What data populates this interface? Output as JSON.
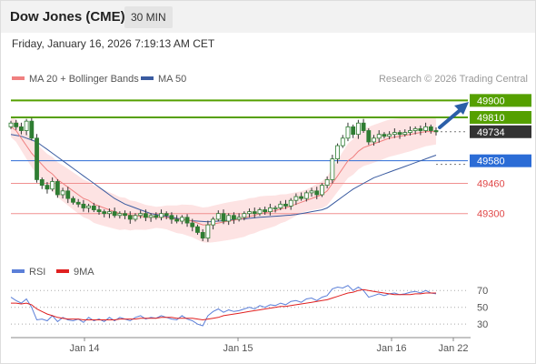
{
  "header": {
    "title": "Dow Jones (CME)",
    "interval": "30 MIN"
  },
  "datetime": "Friday, January 16, 2026 7:19:13 AM CET",
  "legend": [
    {
      "label": "MA 20 + Bollinger Bands",
      "color": "#f08080"
    },
    {
      "label": "MA 50",
      "color": "#3a5ba0"
    }
  ],
  "copyright": "Research © 2026 Trading Central",
  "rsi_legend": [
    {
      "label": "RSI",
      "color": "#5b7fd8"
    },
    {
      "label": "9MA",
      "color": "#e02020"
    }
  ],
  "chart_data": {
    "type": "candlestick",
    "price_ylim": [
      49120,
      49950
    ],
    "levels": [
      {
        "label": "49900",
        "value": 49900,
        "kind": "resistance",
        "color": "#55a000"
      },
      {
        "label": "49810",
        "value": 49810,
        "kind": "resistance",
        "color": "#55a000"
      },
      {
        "label": "49734",
        "value": 49734,
        "kind": "last",
        "color": "#333333"
      },
      {
        "label": "49580",
        "value": 49580,
        "kind": "pivot",
        "color": "#2b6cd6"
      },
      {
        "label": "49460",
        "value": 49460,
        "kind": "support",
        "color": "#e04848"
      },
      {
        "label": "49300",
        "value": 49300,
        "kind": "support",
        "color": "#e04848"
      }
    ],
    "x_ticks": [
      "Jan 14",
      "Jan 15",
      "Jan 16",
      "Jan 22"
    ],
    "close": [
      49780,
      49760,
      49740,
      49790,
      49700,
      49480,
      49450,
      49430,
      49470,
      49400,
      49420,
      49380,
      49360,
      49350,
      49330,
      49340,
      49320,
      49310,
      49300,
      49310,
      49290,
      49300,
      49290,
      49270,
      49290,
      49300,
      49280,
      49290,
      49280,
      49300,
      49290,
      49270,
      49260,
      49280,
      49250,
      49230,
      49200,
      49170,
      49240,
      49270,
      49300,
      49260,
      49290,
      49270,
      49280,
      49300,
      49310,
      49300,
      49320,
      49310,
      49330,
      49330,
      49350,
      49340,
      49370,
      49390,
      49380,
      49410,
      49420,
      49400,
      49450,
      49480,
      49590,
      49660,
      49700,
      49760,
      49720,
      49780,
      49740,
      49680,
      49700,
      49720,
      49710,
      49720,
      49730,
      49720,
      49730,
      49740,
      49750,
      49740,
      49760,
      49740,
      49734
    ],
    "ma20": [
      49760,
      49740,
      49700,
      49660,
      49620,
      49590,
      49560,
      49530,
      49510,
      49480,
      49460,
      49440,
      49420,
      49400,
      49380,
      49370,
      49350,
      49340,
      49330,
      49320,
      49310,
      49300,
      49300,
      49290,
      49290,
      49285,
      49280,
      49280,
      49280,
      49280,
      49280,
      49275,
      49270,
      49270,
      49265,
      49260,
      49250,
      49240,
      49240,
      49245,
      49250,
      49255,
      49260,
      49265,
      49270,
      49275,
      49285,
      49290,
      49300,
      49305,
      49310,
      49315,
      49325,
      49330,
      49340,
      49350,
      49360,
      49370,
      49380,
      49390,
      49400,
      49420,
      49460,
      49500,
      49540,
      49580,
      49600,
      49630,
      49650,
      49660,
      49670,
      49680,
      49690,
      49700,
      49705,
      49710,
      49715,
      49720,
      49725,
      49730,
      49735,
      49735,
      49735
    ],
    "ma50": [
      49720,
      49715,
      49710,
      49700,
      49690,
      49680,
      49660,
      49640,
      49620,
      49600,
      49580,
      49560,
      49540,
      49520,
      49500,
      49480,
      49460,
      49440,
      49420,
      49400,
      49380,
      49365,
      49350,
      49340,
      49330,
      49320,
      49310,
      49300,
      49295,
      49290,
      49285,
      49280,
      49275,
      49270,
      49265,
      49262,
      49260,
      49258,
      49256,
      49258,
      49260,
      49262,
      49265,
      49268,
      49270,
      49272,
      49275,
      49278,
      49280,
      49282,
      49284,
      49286,
      49288,
      49290,
      49292,
      49295,
      49300,
      49305,
      49310,
      49315,
      49320,
      49330,
      49350,
      49370,
      49390,
      49410,
      49430,
      49445,
      49460,
      49475,
      49490,
      49500,
      49510,
      49520,
      49530,
      49540,
      49550,
      49560,
      49570,
      49580,
      49590,
      49600,
      49610
    ],
    "rsi_ylim": [
      15,
      80
    ],
    "rsi_levels": [
      "70",
      "50",
      "30"
    ],
    "rsi": [
      62,
      58,
      55,
      60,
      50,
      35,
      36,
      34,
      40,
      33,
      38,
      35,
      34,
      36,
      32,
      38,
      34,
      36,
      33,
      38,
      34,
      38,
      36,
      34,
      38,
      40,
      36,
      38,
      37,
      40,
      38,
      36,
      35,
      40,
      36,
      34,
      30,
      28,
      40,
      45,
      48,
      44,
      47,
      45,
      46,
      48,
      50,
      48,
      52,
      50,
      53,
      52,
      55,
      53,
      57,
      58,
      56,
      60,
      61,
      58,
      62,
      64,
      72,
      74,
      73,
      76,
      70,
      74,
      70,
      62,
      64,
      66,
      64,
      66,
      67,
      65,
      66,
      68,
      69,
      67,
      70,
      67,
      66
    ],
    "rsi_ma": [
      55,
      55,
      54,
      55,
      53,
      48,
      45,
      42,
      40,
      38,
      37,
      36,
      36,
      36,
      35,
      35,
      35,
      35,
      35,
      35,
      35,
      36,
      36,
      36,
      36,
      37,
      37,
      37,
      37,
      38,
      38,
      38,
      37,
      37,
      37,
      37,
      36,
      35,
      36,
      37,
      38,
      40,
      41,
      42,
      43,
      44,
      45,
      46,
      47,
      48,
      49,
      50,
      51,
      51,
      52,
      53,
      54,
      55,
      56,
      57,
      58,
      59,
      61,
      63,
      65,
      67,
      68,
      70,
      71,
      70,
      69,
      68,
      67,
      66,
      65,
      65,
      65,
      65,
      66,
      66,
      67,
      67,
      67
    ]
  }
}
